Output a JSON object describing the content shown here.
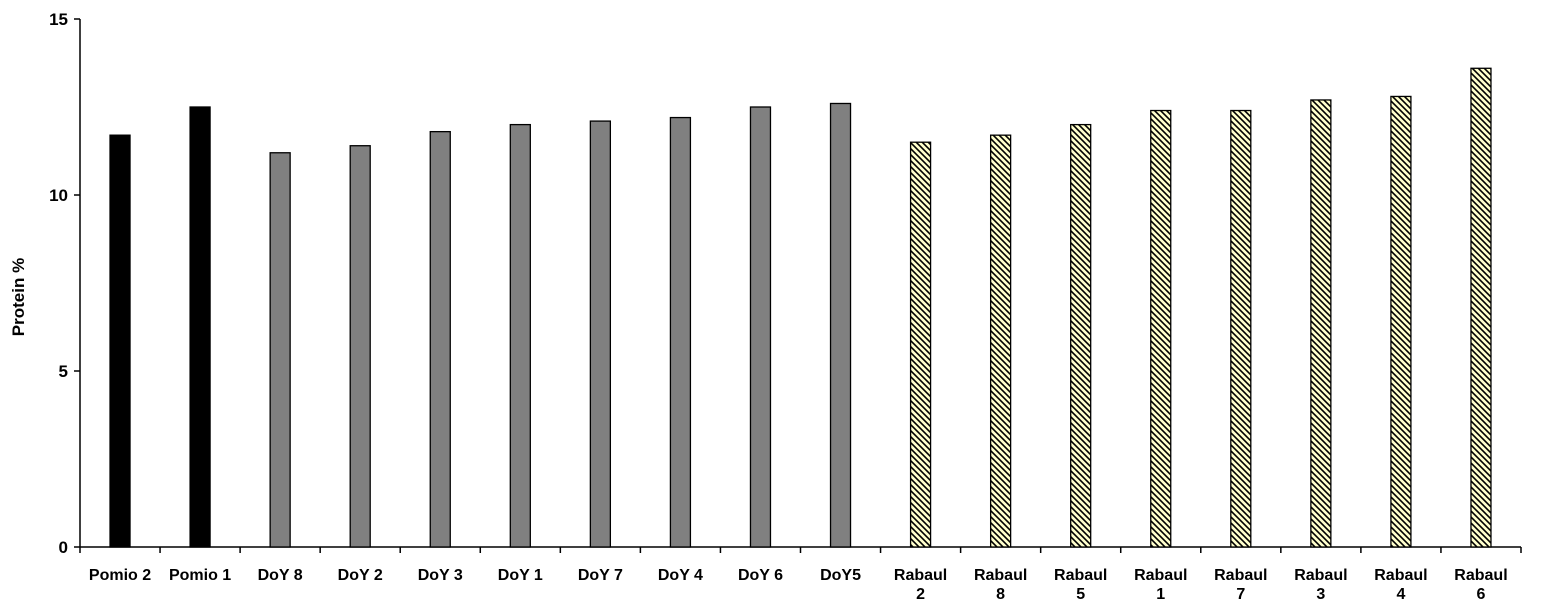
{
  "chart_data": {
    "type": "bar",
    "title": "",
    "xlabel": "",
    "ylabel": "Protein %",
    "ylim": [
      0,
      15
    ],
    "yticks": [
      0,
      5,
      10,
      15
    ],
    "grid": false,
    "categories": [
      [
        "Pomio 2"
      ],
      [
        "Pomio 1"
      ],
      [
        "DoY 8"
      ],
      [
        "DoY 2"
      ],
      [
        "DoY 3"
      ],
      [
        "DoY 1"
      ],
      [
        "DoY 7"
      ],
      [
        "DoY 4"
      ],
      [
        "DoY 6"
      ],
      [
        "DoY5"
      ],
      [
        "Rabaul",
        "2"
      ],
      [
        "Rabaul",
        "8"
      ],
      [
        "Rabaul",
        "5"
      ],
      [
        "Rabaul",
        "1"
      ],
      [
        "Rabaul",
        "7"
      ],
      [
        "Rabaul",
        "3"
      ],
      [
        "Rabaul",
        "4"
      ],
      [
        "Rabaul",
        "6"
      ]
    ],
    "values": [
      11.7,
      12.5,
      11.2,
      11.4,
      11.8,
      12.0,
      12.1,
      12.2,
      12.5,
      12.6,
      11.5,
      11.7,
      12.0,
      12.4,
      12.4,
      12.7,
      12.8,
      13.6
    ],
    "groups": [
      "pomio",
      "pomio",
      "doy",
      "doy",
      "doy",
      "doy",
      "doy",
      "doy",
      "doy",
      "doy",
      "rabaul",
      "rabaul",
      "rabaul",
      "rabaul",
      "rabaul",
      "rabaul",
      "rabaul",
      "rabaul"
    ],
    "group_styles": {
      "pomio": {
        "fill": "#000000",
        "pattern": "solid"
      },
      "doy": {
        "fill": "#808080",
        "pattern": "solid"
      },
      "rabaul": {
        "fill": "#ffffcc",
        "pattern": "diagonal-hatch",
        "hatch_color": "#000000"
      }
    }
  }
}
